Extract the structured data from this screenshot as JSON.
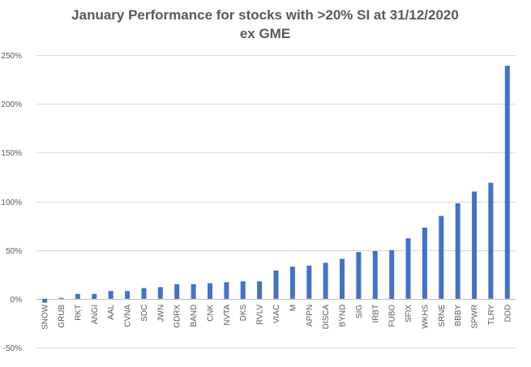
{
  "chart_data": {
    "type": "bar",
    "title": "January Performance for stocks with >20% SI at 31/12/2020",
    "subtitle": "ex GME",
    "xlabel": "",
    "ylabel": "",
    "y_format": "percent",
    "ylim": [
      -50,
      250
    ],
    "yticks": [
      -50,
      0,
      50,
      100,
      150,
      200,
      250
    ],
    "ytick_labels": [
      "-50%",
      "0%",
      "50%",
      "100%",
      "150%",
      "200%",
      "250%"
    ],
    "grid": true,
    "legend": "none",
    "bar_color": "#4472c4",
    "categories": [
      "SNOW",
      "GRUB",
      "RKT",
      "ANGI",
      "AAL",
      "CVNA",
      "SDC",
      "JWN",
      "GDRX",
      "BAND",
      "CNK",
      "NVTA",
      "DKS",
      "RVLV",
      "VIAC",
      "M",
      "APPN",
      "DISCA",
      "BYND",
      "SIG",
      "IRBT",
      "FUBO",
      "SFIX",
      "WKHS",
      "SRNE",
      "BBBY",
      "SPWR",
      "TLRY",
      "DDD"
    ],
    "values": [
      -4,
      1,
      5,
      5,
      8,
      8,
      11,
      12,
      15,
      15,
      16,
      17,
      18,
      18,
      29,
      33,
      34,
      37,
      41,
      48,
      49,
      50,
      62,
      73,
      85,
      98,
      110,
      119,
      239
    ]
  }
}
